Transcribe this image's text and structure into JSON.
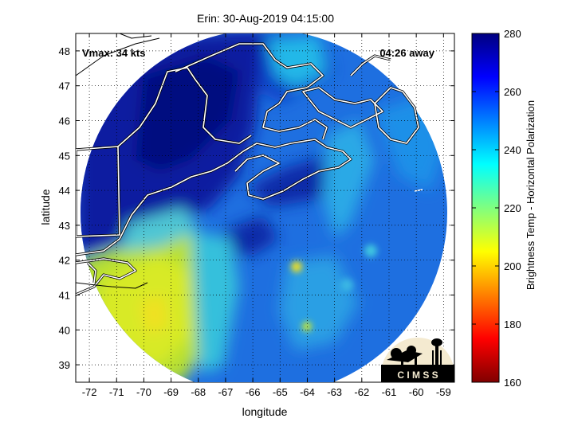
{
  "title": "Erin: 30-Aug-2019 04:15:00",
  "vmax_label": "Vmax: 34 kts",
  "time_away_label": "04:26 away",
  "xlabel": "longitude",
  "ylabel": "latitude",
  "colorbar_label": "Brightness Temp - Horizontal Polarization",
  "logo_text": "C I M S S",
  "chart_data": {
    "type": "heatmap",
    "title": "Erin: 30-Aug-2019 04:15:00",
    "xlabel": "longitude",
    "ylabel": "latitude",
    "xlim": [
      -72.5,
      -58.6
    ],
    "ylim": [
      38.5,
      48.5
    ],
    "x_ticks": [
      -72,
      -71,
      -70,
      -69,
      -68,
      -67,
      -66,
      -65,
      -64,
      -63,
      -62,
      -61,
      -60,
      -59
    ],
    "y_ticks": [
      39,
      40,
      41,
      42,
      43,
      44,
      45,
      46,
      47,
      48
    ],
    "grid": true,
    "colorbar": {
      "label": "Brightness Temp - Horizontal Polarization",
      "range": [
        160,
        280
      ],
      "ticks": [
        160,
        180,
        200,
        220,
        240,
        260,
        280
      ],
      "colormap": "jet",
      "colors": [
        "#800000",
        "#ff0000",
        "#ffff00",
        "#00ffff",
        "#0000ff",
        "#000080"
      ]
    },
    "swath_center": [
      -65.3,
      42.2
    ],
    "swath_radius_deg_lat": 5.2,
    "colors": {
      "land_cold": "#0a1f9e",
      "ocean_warm": "#1e78e0",
      "rain_band": "#c8e82a",
      "coastline": "#ffffff",
      "border": "#000000"
    }
  }
}
